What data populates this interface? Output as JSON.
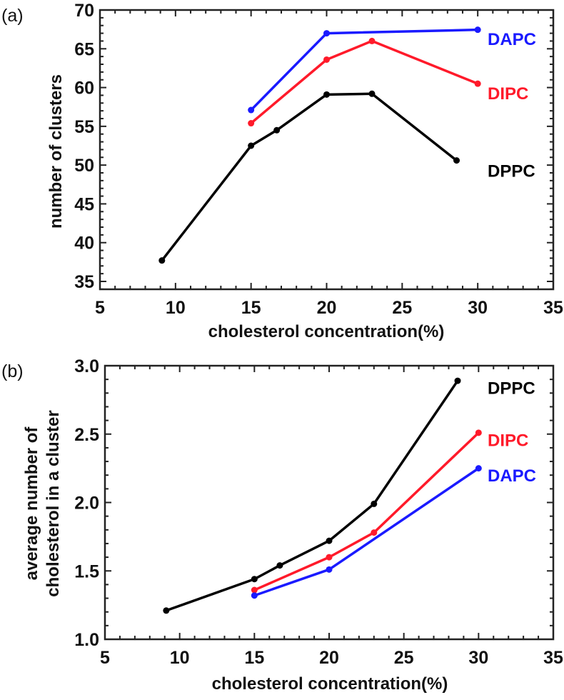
{
  "chart_data": [
    {
      "type": "line",
      "panel_label": "(a)",
      "xlabel": "cholesterol concentration(%)",
      "ylabel": "number of clusters",
      "xlim": [
        5,
        35
      ],
      "ylim": [
        34,
        70
      ],
      "xticks": [
        5,
        10,
        15,
        20,
        25,
        30,
        35
      ],
      "yticks": [
        35,
        40,
        45,
        50,
        55,
        60,
        65,
        70
      ],
      "grid": false,
      "series": [
        {
          "name": "DAPC",
          "color": "#1a1aff",
          "x": [
            15,
            20,
            30
          ],
          "y": [
            57.1,
            67.0,
            67.45
          ]
        },
        {
          "name": "DIPC",
          "color": "#ff1a2a",
          "x": [
            15,
            20,
            23,
            30
          ],
          "y": [
            55.4,
            63.6,
            66.0,
            60.5
          ]
        },
        {
          "name": "DPPC",
          "color": "#000000",
          "x": [
            9.1,
            15,
            16.7,
            20,
            23,
            28.6
          ],
          "y": [
            37.7,
            52.5,
            54.5,
            59.1,
            59.2,
            50.6
          ]
        }
      ],
      "legend_y": {
        "DAPC": 66.3,
        "DIPC": 59.3,
        "DPPC": 49.3
      }
    },
    {
      "type": "line",
      "panel_label": "(b)",
      "xlabel": "cholesterol concentration(%)",
      "ylabel_lines": [
        "average number of",
        "cholesterol in a cluster"
      ],
      "xlim": [
        5,
        35
      ],
      "ylim": [
        1.0,
        3.0
      ],
      "xticks": [
        5,
        10,
        15,
        20,
        25,
        30,
        35
      ],
      "yticks": [
        "1.0",
        "1.5",
        "2.0",
        "2.5",
        "3.0"
      ],
      "grid": false,
      "series": [
        {
          "name": "DPPC",
          "color": "#000000",
          "x": [
            9.1,
            15,
            16.7,
            20,
            23,
            28.6
          ],
          "y": [
            1.21,
            1.44,
            1.54,
            1.72,
            1.99,
            2.89
          ]
        },
        {
          "name": "DIPC",
          "color": "#ff1a2a",
          "x": [
            15,
            20,
            23,
            30
          ],
          "y": [
            1.36,
            1.6,
            1.78,
            2.51
          ]
        },
        {
          "name": "DAPC",
          "color": "#1a1aff",
          "x": [
            15,
            20,
            30
          ],
          "y": [
            1.32,
            1.51,
            2.25
          ]
        }
      ],
      "legend_y": {
        "DPPC": 2.84,
        "DIPC": 2.46,
        "DAPC": 2.2
      }
    }
  ]
}
